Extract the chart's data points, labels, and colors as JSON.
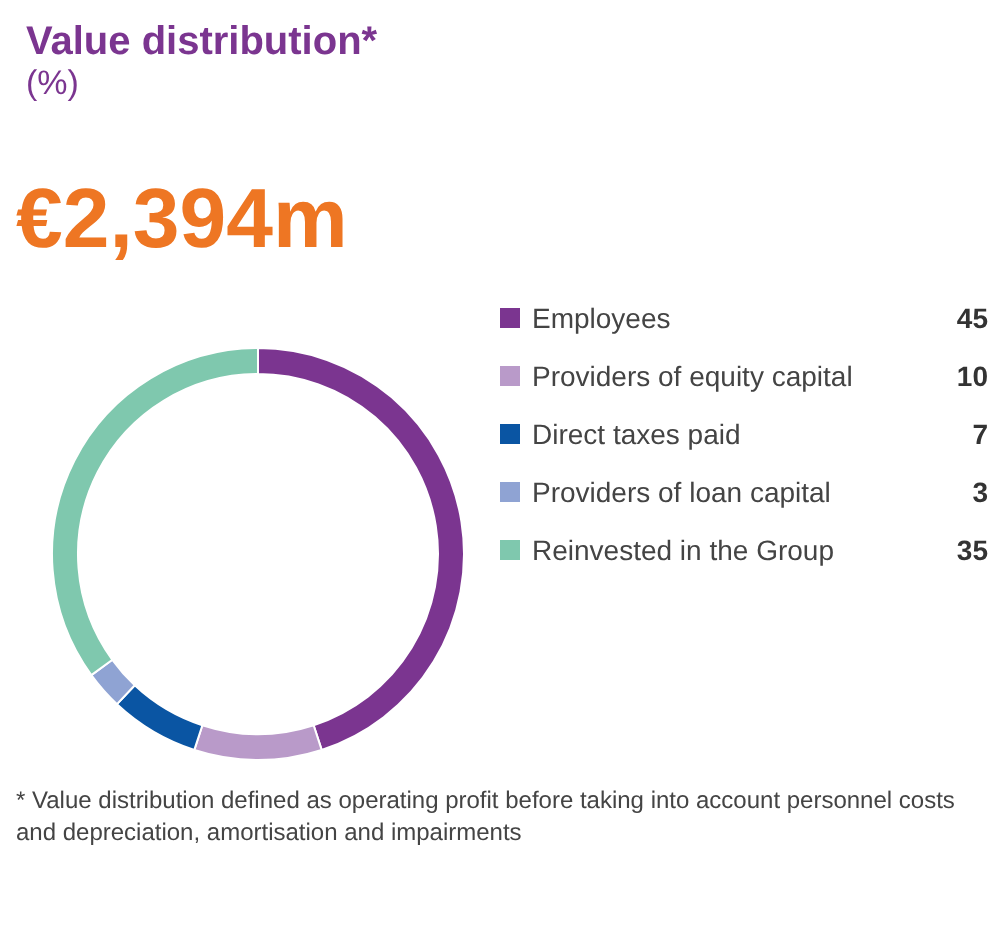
{
  "chart_data": {
    "type": "donut",
    "title": "Value distribution*",
    "subtitle": "(%)",
    "annotations": [
      "€2,394m",
      "* Value distribution defined as operating profit before taking into account personnel costs and depreciation, amortisation and impairments"
    ],
    "categories": [
      "Employees",
      "Providers of equity capital",
      "Direct taxes paid",
      "Providers of loan capital",
      "Reinvested in the Group"
    ],
    "values": [
      45,
      10,
      7,
      3,
      35
    ],
    "colors": [
      "#7b3590",
      "#b99ac9",
      "#0a55a3",
      "#8fa3d3",
      "#7fc8ae"
    ],
    "data_labels": true,
    "legend": "right"
  }
}
